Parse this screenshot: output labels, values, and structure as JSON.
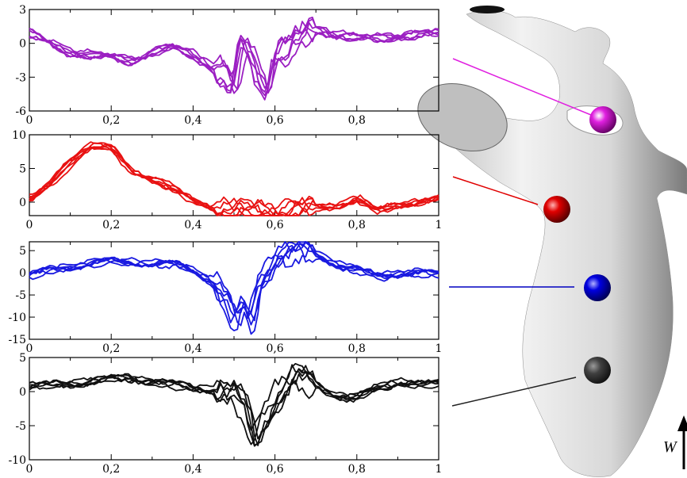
{
  "figure": {
    "velocity_symbol": "W"
  },
  "chart_data": [
    {
      "type": "line",
      "xlim": [
        0,
        1
      ],
      "ylim": [
        -6,
        3
      ],
      "x_ticks": [
        "0",
        "0,2",
        "0,4",
        "0,6",
        "0,8"
      ],
      "y_ticks": [
        "3",
        "0",
        "-3",
        "-6"
      ],
      "series_color": "#9b1fc2",
      "probe_color": "#e020e0",
      "n_series": 6,
      "x": [
        0,
        0.05,
        0.1,
        0.15,
        0.2,
        0.25,
        0.3,
        0.35,
        0.4,
        0.45,
        0.48,
        0.5,
        0.52,
        0.55,
        0.58,
        0.6,
        0.63,
        0.66,
        0.7,
        0.75,
        0.8,
        0.85,
        0.9,
        0.95,
        1
      ],
      "values": [
        1.0,
        0.0,
        -0.8,
        -1.0,
        -1.2,
        -1.6,
        -0.8,
        -0.3,
        -1.0,
        -2.2,
        -3.0,
        -4.2,
        0.0,
        -2.0,
        -4.5,
        -1.0,
        -0.5,
        0.5,
        1.2,
        0.8,
        0.5,
        0.5,
        0.6,
        0.8,
        0.9
      ]
    },
    {
      "type": "line",
      "xlim": [
        0,
        1
      ],
      "ylim": [
        -2,
        10
      ],
      "x_ticks": [
        "0",
        "0,2",
        "0,4",
        "0,6",
        "0,8",
        "1"
      ],
      "y_ticks": [
        "10",
        "5",
        "0"
      ],
      "series_color": "#e81212",
      "probe_color": "#e00000",
      "n_series": 6,
      "x": [
        0,
        0.05,
        0.1,
        0.15,
        0.2,
        0.25,
        0.3,
        0.35,
        0.4,
        0.45,
        0.5,
        0.55,
        0.6,
        0.65,
        0.7,
        0.75,
        0.8,
        0.85,
        0.9,
        0.95,
        1
      ],
      "values": [
        0.5,
        2.5,
        6.0,
        8.5,
        8.0,
        4.5,
        3.5,
        2.0,
        0.2,
        -0.8,
        -1.2,
        -1.4,
        -1.3,
        -1.0,
        -0.8,
        -0.6,
        0.5,
        -1.3,
        -0.4,
        0.0,
        0.5
      ]
    },
    {
      "type": "line",
      "xlim": [
        0,
        1
      ],
      "ylim": [
        -15,
        7
      ],
      "x_ticks": [
        "0",
        "0,2",
        "0,4",
        "0,6",
        "0,8",
        "1"
      ],
      "y_ticks": [
        "5",
        "0",
        "-5",
        "-10",
        "-15"
      ],
      "series_color": "#1a1ae0",
      "probe_color": "#0000e0",
      "n_series": 6,
      "x": [
        0,
        0.05,
        0.1,
        0.15,
        0.2,
        0.25,
        0.3,
        0.35,
        0.4,
        0.45,
        0.48,
        0.5,
        0.52,
        0.54,
        0.56,
        0.58,
        0.6,
        0.65,
        0.7,
        0.75,
        0.8,
        0.85,
        0.9,
        0.95,
        1
      ],
      "values": [
        -0.5,
        0.5,
        1.5,
        2.2,
        2.5,
        2.4,
        2.2,
        1.8,
        0.5,
        -2.0,
        -6.0,
        -12.5,
        -8.0,
        -12.0,
        -2.0,
        1.0,
        4.5,
        4.5,
        4.0,
        2.0,
        0.5,
        -1.0,
        0.0,
        0.0,
        -0.5
      ]
    },
    {
      "type": "line",
      "xlim": [
        0,
        1
      ],
      "ylim": [
        -10,
        5
      ],
      "x_ticks": [
        "0",
        "0,2",
        "0,4",
        "0,6",
        "0,8",
        "1"
      ],
      "y_ticks": [
        "5",
        "0",
        "-5",
        "-10"
      ],
      "series_color": "#111111",
      "probe_color": "#2a2a2a",
      "n_series": 6,
      "x": [
        0,
        0.05,
        0.1,
        0.15,
        0.2,
        0.25,
        0.3,
        0.35,
        0.4,
        0.45,
        0.5,
        0.53,
        0.55,
        0.57,
        0.6,
        0.63,
        0.65,
        0.7,
        0.75,
        0.8,
        0.85,
        0.9,
        0.95,
        1
      ],
      "values": [
        0.8,
        1.0,
        1.2,
        1.5,
        1.8,
        2.0,
        1.5,
        1.0,
        0.6,
        0.3,
        -0.5,
        -3.0,
        -7.5,
        -4.0,
        -1.0,
        1.0,
        2.0,
        1.0,
        -0.5,
        -1.0,
        0.5,
        1.5,
        1.0,
        1.2
      ]
    }
  ]
}
